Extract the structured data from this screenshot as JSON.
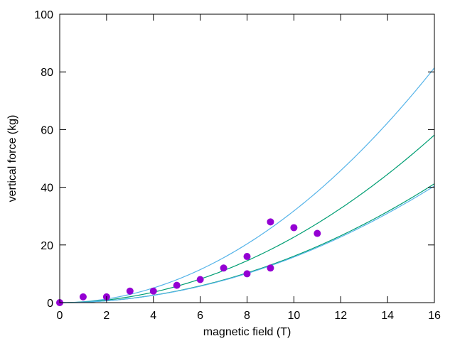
{
  "chart_data": {
    "type": "scatter",
    "xlabel": "magnetic field (T)",
    "ylabel": "vertical force (kg)",
    "xlim": [
      0,
      16
    ],
    "ylim": [
      0,
      100
    ],
    "xticks": [
      "0",
      "2",
      "4",
      "6",
      "8",
      "10",
      "12",
      "14",
      "16"
    ],
    "yticks": [
      "0",
      "20",
      "40",
      "60",
      "80",
      "100"
    ],
    "grid": false,
    "legend": "none",
    "series": [
      {
        "kind": "points",
        "color": "#9400d3",
        "points": [
          [
            0,
            0
          ],
          [
            1,
            2
          ],
          [
            2,
            2
          ],
          [
            3,
            4
          ],
          [
            4,
            4
          ],
          [
            5,
            6
          ],
          [
            6,
            8
          ],
          [
            7,
            12
          ],
          [
            8,
            16
          ],
          [
            8,
            10
          ],
          [
            9,
            28
          ],
          [
            9,
            12
          ],
          [
            10,
            26
          ],
          [
            11,
            24
          ]
        ]
      },
      {
        "kind": "curve",
        "model": "y = a*x^2",
        "coefficient": 0.318,
        "color": "#56b4e9",
        "values_at": [
          [
            0,
            0
          ],
          [
            4,
            5.1
          ],
          [
            8,
            20.4
          ],
          [
            12,
            45.8
          ],
          [
            16,
            81.4
          ]
        ]
      },
      {
        "kind": "curve",
        "model": "y = a*x^2",
        "coefficient": 0.227,
        "color": "#009e73",
        "values_at": [
          [
            0,
            0
          ],
          [
            4,
            3.6
          ],
          [
            8,
            14.5
          ],
          [
            12,
            32.7
          ],
          [
            16,
            58.1
          ]
        ]
      },
      {
        "kind": "curve",
        "model": "y = a*x^2",
        "coefficient": 0.161,
        "color": "#009e73",
        "values_at": [
          [
            0,
            0
          ],
          [
            4,
            2.6
          ],
          [
            8,
            10.3
          ],
          [
            12,
            23.2
          ],
          [
            16,
            41.2
          ]
        ]
      },
      {
        "kind": "curve",
        "model": "y = a*x^2",
        "coefficient": 0.158,
        "color": "#56b4e9",
        "values_at": [
          [
            0,
            0
          ],
          [
            4,
            2.5
          ],
          [
            8,
            10.1
          ],
          [
            12,
            22.8
          ],
          [
            16,
            40.4
          ]
        ]
      }
    ]
  }
}
